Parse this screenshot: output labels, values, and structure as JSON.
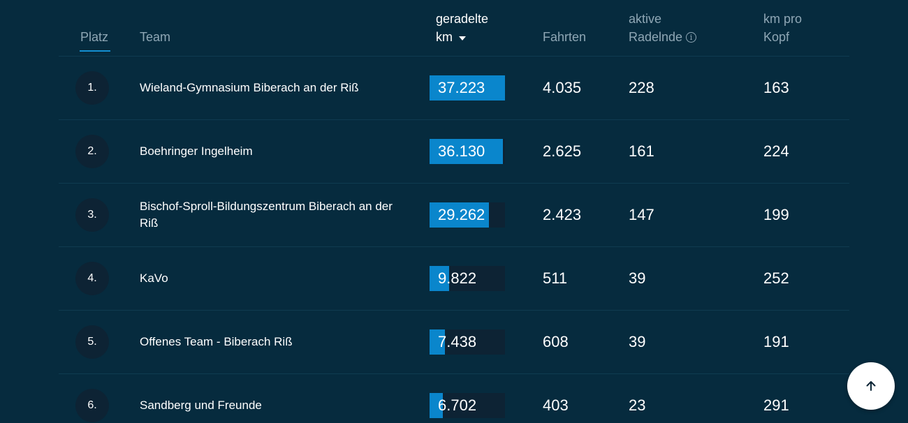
{
  "header": {
    "platz": "Platz",
    "team": "Team",
    "km_line1": "geradelte",
    "km_line2": "km",
    "fahrten": "Fahrten",
    "aktive_line1": "aktive",
    "aktive_line2": "Radelnde",
    "kmpro_line1": "km pro",
    "kmpro_line2": "Kopf",
    "info_icon": "info-icon",
    "sort_icon": "sort-descending-icon"
  },
  "colors": {
    "background": "#062b3e",
    "bar_fill": "#0a86cc",
    "bar_track": "#0d2334",
    "accent_underline": "#138fd1"
  },
  "rows": [
    {
      "rank": "1.",
      "team": "Wieland-Gymnasium Biberach an der Riß",
      "km": "37.223",
      "km_value": 37223,
      "fahrten": "4.035",
      "aktive": "228",
      "km_pro_kopf": "163"
    },
    {
      "rank": "2.",
      "team": "Boehringer Ingelheim",
      "km": "36.130",
      "km_value": 36130,
      "fahrten": "2.625",
      "aktive": "161",
      "km_pro_kopf": "224"
    },
    {
      "rank": "3.",
      "team": "Bischof-Sproll-Bildungszentrum Biberach an der Riß",
      "km": "29.262",
      "km_value": 29262,
      "fahrten": "2.423",
      "aktive": "147",
      "km_pro_kopf": "199"
    },
    {
      "rank": "4.",
      "team": "KaVo",
      "km": "9.822",
      "km_value": 9822,
      "fahrten": "511",
      "aktive": "39",
      "km_pro_kopf": "252"
    },
    {
      "rank": "5.",
      "team": "Offenes Team - Biberach Riß",
      "km": "7.438",
      "km_value": 7438,
      "fahrten": "608",
      "aktive": "39",
      "km_pro_kopf": "191"
    },
    {
      "rank": "6.",
      "team": "Sandberg und Freunde",
      "km": "6.702",
      "km_value": 6702,
      "fahrten": "403",
      "aktive": "23",
      "km_pro_kopf": "291"
    }
  ],
  "scroll_top_button": {
    "icon": "arrow-up-icon"
  }
}
